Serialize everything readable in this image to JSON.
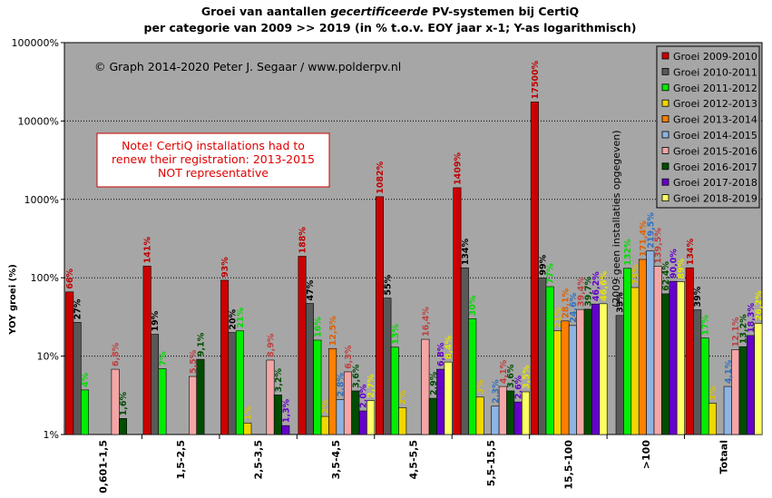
{
  "title": {
    "line1_a": "Groei  van aantallen ",
    "line1_em": "gecertificeerde",
    "line1_b": "  PV-systemen bij CertiQ",
    "line2": "per categorie van 2009 >> 2019 (in % t.o.v. EOY jaar x-1; Y-as logarithmisch)"
  },
  "copyright": "© Graph  2014-2020  Peter  J. Segaar / www.polderpv.nl",
  "note": [
    "Note! CertiQ installations had to",
    "renew their registration: 2013-2015",
    "NOT representative"
  ],
  "vertical_note": "(2009 geen installaties opgegeven)",
  "chart_data": {
    "type": "bar",
    "title": "Groei van aantallen gecertificeerde PV-systemen bij CertiQ per categorie van 2009 >> 2019 (in % t.o.v. EOY jaar x-1; Y-as logarithmisch)",
    "ylabel": "YOY groei (%)",
    "xlabel": "",
    "yscale": "log",
    "ylim": [
      1,
      100000
    ],
    "yticks": [
      "1%",
      "10%",
      "100%",
      "1000%",
      "10000%",
      "100000%"
    ],
    "grid": true,
    "legend_position": "top-right",
    "categories": [
      "0,601-1,5",
      "1,5-2,5",
      "2,5-3,5",
      "3,5-4,5",
      "4,5-5,5",
      "5,5-15,5",
      "15,5-100",
      ">100",
      "Totaal"
    ],
    "series": [
      {
        "name": "Groei 2009-2010",
        "color": "#cc0000",
        "label_color": "#c00000",
        "values": [
          66,
          141,
          93,
          188,
          1082,
          1409,
          17500,
          null,
          134
        ],
        "labels": [
          "66%",
          "141%",
          "93%",
          "188%",
          "1082%",
          "1409%",
          "17500%",
          "",
          "134%"
        ]
      },
      {
        "name": "Groei 2010-2011",
        "color": "#595959",
        "label_color": "#000000",
        "values": [
          27,
          19,
          20,
          47,
          55,
          134,
          99,
          33,
          39
        ],
        "labels": [
          "27%",
          "19%",
          "20%",
          "47%",
          "55%",
          "134%",
          "99%",
          "33%",
          "39%"
        ]
      },
      {
        "name": "Groei 2011-2012",
        "color": "#00ee00",
        "label_color": "#00dd00",
        "values": [
          3.7,
          6.9,
          21,
          16,
          13,
          30,
          77,
          132,
          17
        ],
        "labels": [
          "4%",
          "7%",
          "21%",
          "16%",
          "13%",
          "30%",
          "77%",
          "132%",
          "17%"
        ]
      },
      {
        "name": "Groei 2012-2013",
        "color": "#f2d600",
        "label_color": "#d9c000",
        "values": [
          null,
          null,
          1.4,
          1.7,
          2.2,
          3.0,
          21,
          75,
          2.5
        ],
        "labels": [
          "",
          "",
          "1%",
          "2%",
          "2%",
          "3%",
          "21%",
          "75%",
          "3%"
        ]
      },
      {
        "name": "Groei 2013-2014",
        "color": "#ff7f00",
        "label_color": "#e06000",
        "values": [
          null,
          null,
          null,
          12.5,
          null,
          null,
          28.1,
          171.4,
          null
        ],
        "labels": [
          "",
          "",
          "",
          "12,5%",
          "",
          "",
          "28,1%",
          "171,4%",
          ""
        ]
      },
      {
        "name": "Groei 2014-2015",
        "color": "#8db4e2",
        "label_color": "#3070c0",
        "values": [
          null,
          null,
          null,
          2.8,
          null,
          2.3,
          24.6,
          219.5,
          4.1
        ],
        "labels": [
          "",
          "",
          "",
          "2,8%",
          "",
          "2,3%",
          "24,6%",
          "219,5%",
          "4,1%"
        ]
      },
      {
        "name": "Groei 2015-2016",
        "color": "#f4a6a6",
        "label_color": "#c04040",
        "values": [
          6.8,
          5.5,
          8.9,
          6.3,
          16.4,
          4.1,
          39.4,
          139.5,
          12.1
        ],
        "labels": [
          "6,8%",
          "5,5%",
          "8,9%",
          "6,3%",
          "16,4%",
          "4,1%",
          "39,4%",
          "139,5%",
          "12,1%"
        ]
      },
      {
        "name": "Groei 2016-2017",
        "color": "#004d00",
        "label_color": "#004d00",
        "values": [
          1.6,
          9.1,
          3.2,
          3.6,
          2.9,
          3.6,
          39.7,
          62.4,
          13.2
        ],
        "labels": [
          "1,6%",
          "9,1%",
          "3,2%",
          "3,6%",
          "2,9%",
          "3,6%",
          "39,7%",
          "62,4%",
          "13,2%"
        ]
      },
      {
        "name": "Groei 2017-2018",
        "color": "#6600cc",
        "label_color": "#6600cc",
        "values": [
          null,
          null,
          1.3,
          2.0,
          6.8,
          2.6,
          46.2,
          90.0,
          18.3
        ],
        "labels": [
          "",
          "",
          "1,3%",
          "2,0%",
          "6,8%",
          "2,6%",
          "46,2%",
          "90,0%",
          "18,3%"
        ]
      },
      {
        "name": "Groei 2018-2019",
        "color": "#ffff66",
        "label_color": "#e6e600",
        "values": [
          null,
          null,
          null,
          2.7,
          8.4,
          3.5,
          46.6,
          89.0,
          26.2
        ],
        "labels": [
          "",
          "",
          "",
          "2,7%",
          "8,4%",
          "3,5%",
          "46,6%",
          "89%",
          "26,2%"
        ]
      }
    ]
  }
}
